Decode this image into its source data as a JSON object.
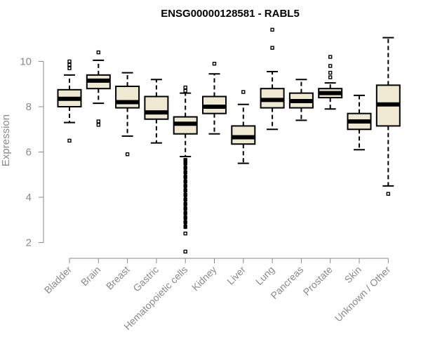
{
  "chart_data": {
    "type": "boxplot",
    "title": "ENSG00000128581 - RABL5",
    "ylabel": "Expression",
    "xlabel": "",
    "ylim": [
      1.5,
      11.5
    ],
    "yticks": [
      2,
      4,
      6,
      8,
      10
    ],
    "box_fill_color": "#efe8d2",
    "categories": [
      "Bladder",
      "Brain",
      "Breast",
      "Gastric",
      "Hematopoietic cells",
      "Kidney",
      "Liver",
      "Lung",
      "Pancreas",
      "Prostate",
      "Skin",
      "Unknown / Other"
    ],
    "series": [
      {
        "category": "Bladder",
        "whisker_low": 7.3,
        "q1": 8.0,
        "median": 8.35,
        "q3": 8.75,
        "whisker_high": 9.4,
        "outliers": [
          6.5,
          9.7,
          9.85,
          10.0
        ]
      },
      {
        "category": "Brain",
        "whisker_low": 8.15,
        "q1": 8.8,
        "median": 9.15,
        "q3": 9.4,
        "whisker_high": 10.05,
        "outliers": [
          7.2,
          7.35,
          10.4
        ]
      },
      {
        "category": "Breast",
        "whisker_low": 6.7,
        "q1": 7.95,
        "median": 8.2,
        "q3": 8.9,
        "whisker_high": 9.5,
        "outliers": [
          5.9
        ]
      },
      {
        "category": "Gastric",
        "whisker_low": 6.4,
        "q1": 7.45,
        "median": 7.75,
        "q3": 8.45,
        "whisker_high": 9.2,
        "outliers": []
      },
      {
        "category": "Hematopoietic cells",
        "whisker_low": 5.8,
        "q1": 6.8,
        "median": 7.25,
        "q3": 7.55,
        "whisker_high": 8.6,
        "outliers": [
          1.6,
          2.4,
          2.7,
          2.9,
          3.1,
          3.3,
          3.5,
          3.7,
          3.9,
          4.1,
          4.3,
          4.5,
          4.7,
          4.9,
          5.1,
          5.3,
          5.5,
          5.65,
          8.7,
          8.85
        ]
      },
      {
        "category": "Kidney",
        "whisker_low": 6.8,
        "q1": 7.7,
        "median": 8.0,
        "q3": 8.45,
        "whisker_high": 9.45,
        "outliers": [
          9.9
        ]
      },
      {
        "category": "Liver",
        "whisker_low": 5.5,
        "q1": 6.35,
        "median": 6.65,
        "q3": 7.15,
        "whisker_high": 8.1,
        "outliers": [
          8.65
        ]
      },
      {
        "category": "Lung",
        "whisker_low": 7.0,
        "q1": 7.95,
        "median": 8.3,
        "q3": 8.8,
        "whisker_high": 9.55,
        "outliers": [
          10.6,
          11.4
        ]
      },
      {
        "category": "Pancreas",
        "whisker_low": 7.4,
        "q1": 7.95,
        "median": 8.25,
        "q3": 8.6,
        "whisker_high": 9.2,
        "outliers": []
      },
      {
        "category": "Prostate",
        "whisker_low": 7.9,
        "q1": 8.4,
        "median": 8.6,
        "q3": 8.8,
        "whisker_high": 9.05,
        "outliers": [
          9.3,
          9.5,
          9.8,
          10.2
        ]
      },
      {
        "category": "Skin",
        "whisker_low": 6.1,
        "q1": 7.0,
        "median": 7.35,
        "q3": 7.7,
        "whisker_high": 8.5,
        "outliers": []
      },
      {
        "category": "Unknown / Other",
        "whisker_low": 4.5,
        "q1": 7.15,
        "median": 8.1,
        "q3": 8.95,
        "whisker_high": 11.05,
        "outliers": [
          4.15
        ]
      }
    ]
  }
}
